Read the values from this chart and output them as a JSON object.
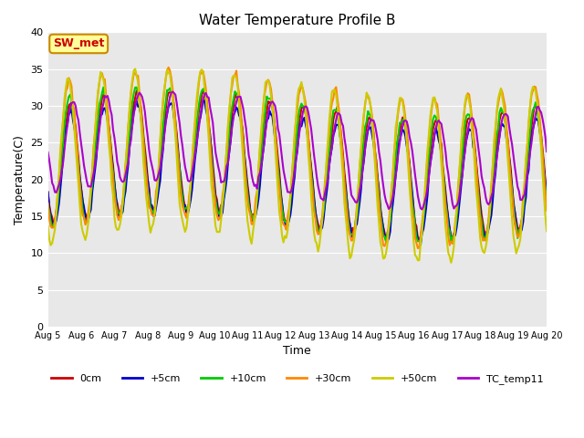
{
  "title": "Water Temperature Profile B",
  "xlabel": "Time",
  "ylabel": "Temperature(C)",
  "ylim": [
    0,
    40
  ],
  "yticks": [
    0,
    5,
    10,
    15,
    20,
    25,
    30,
    35,
    40
  ],
  "bg_color": "#e8e8e8",
  "series": {
    "0cm": {
      "color": "#cc0000",
      "lw": 1.5
    },
    "+5cm": {
      "color": "#0000cc",
      "lw": 1.5
    },
    "+10cm": {
      "color": "#00cc00",
      "lw": 1.5
    },
    "+30cm": {
      "color": "#ff8800",
      "lw": 1.5
    },
    "+50cm": {
      "color": "#cccc00",
      "lw": 1.5
    },
    "TC_temp11": {
      "color": "#aa00cc",
      "lw": 1.5
    }
  },
  "annotation_text": "SW_met",
  "annotation_bg": "#ffff99",
  "annotation_border": "#cc8800",
  "annotation_text_color": "#cc0000",
  "num_days": 15,
  "day_labels": [
    "Aug 5",
    "Aug 6",
    "Aug 7",
    "Aug 8",
    "Aug 9",
    "Aug 10",
    "Aug 11",
    "Aug 12",
    "Aug 13",
    "Aug 14",
    "Aug 15",
    "Aug 16",
    "Aug 17",
    "Aug 18",
    "Aug 19",
    "Aug 20"
  ]
}
